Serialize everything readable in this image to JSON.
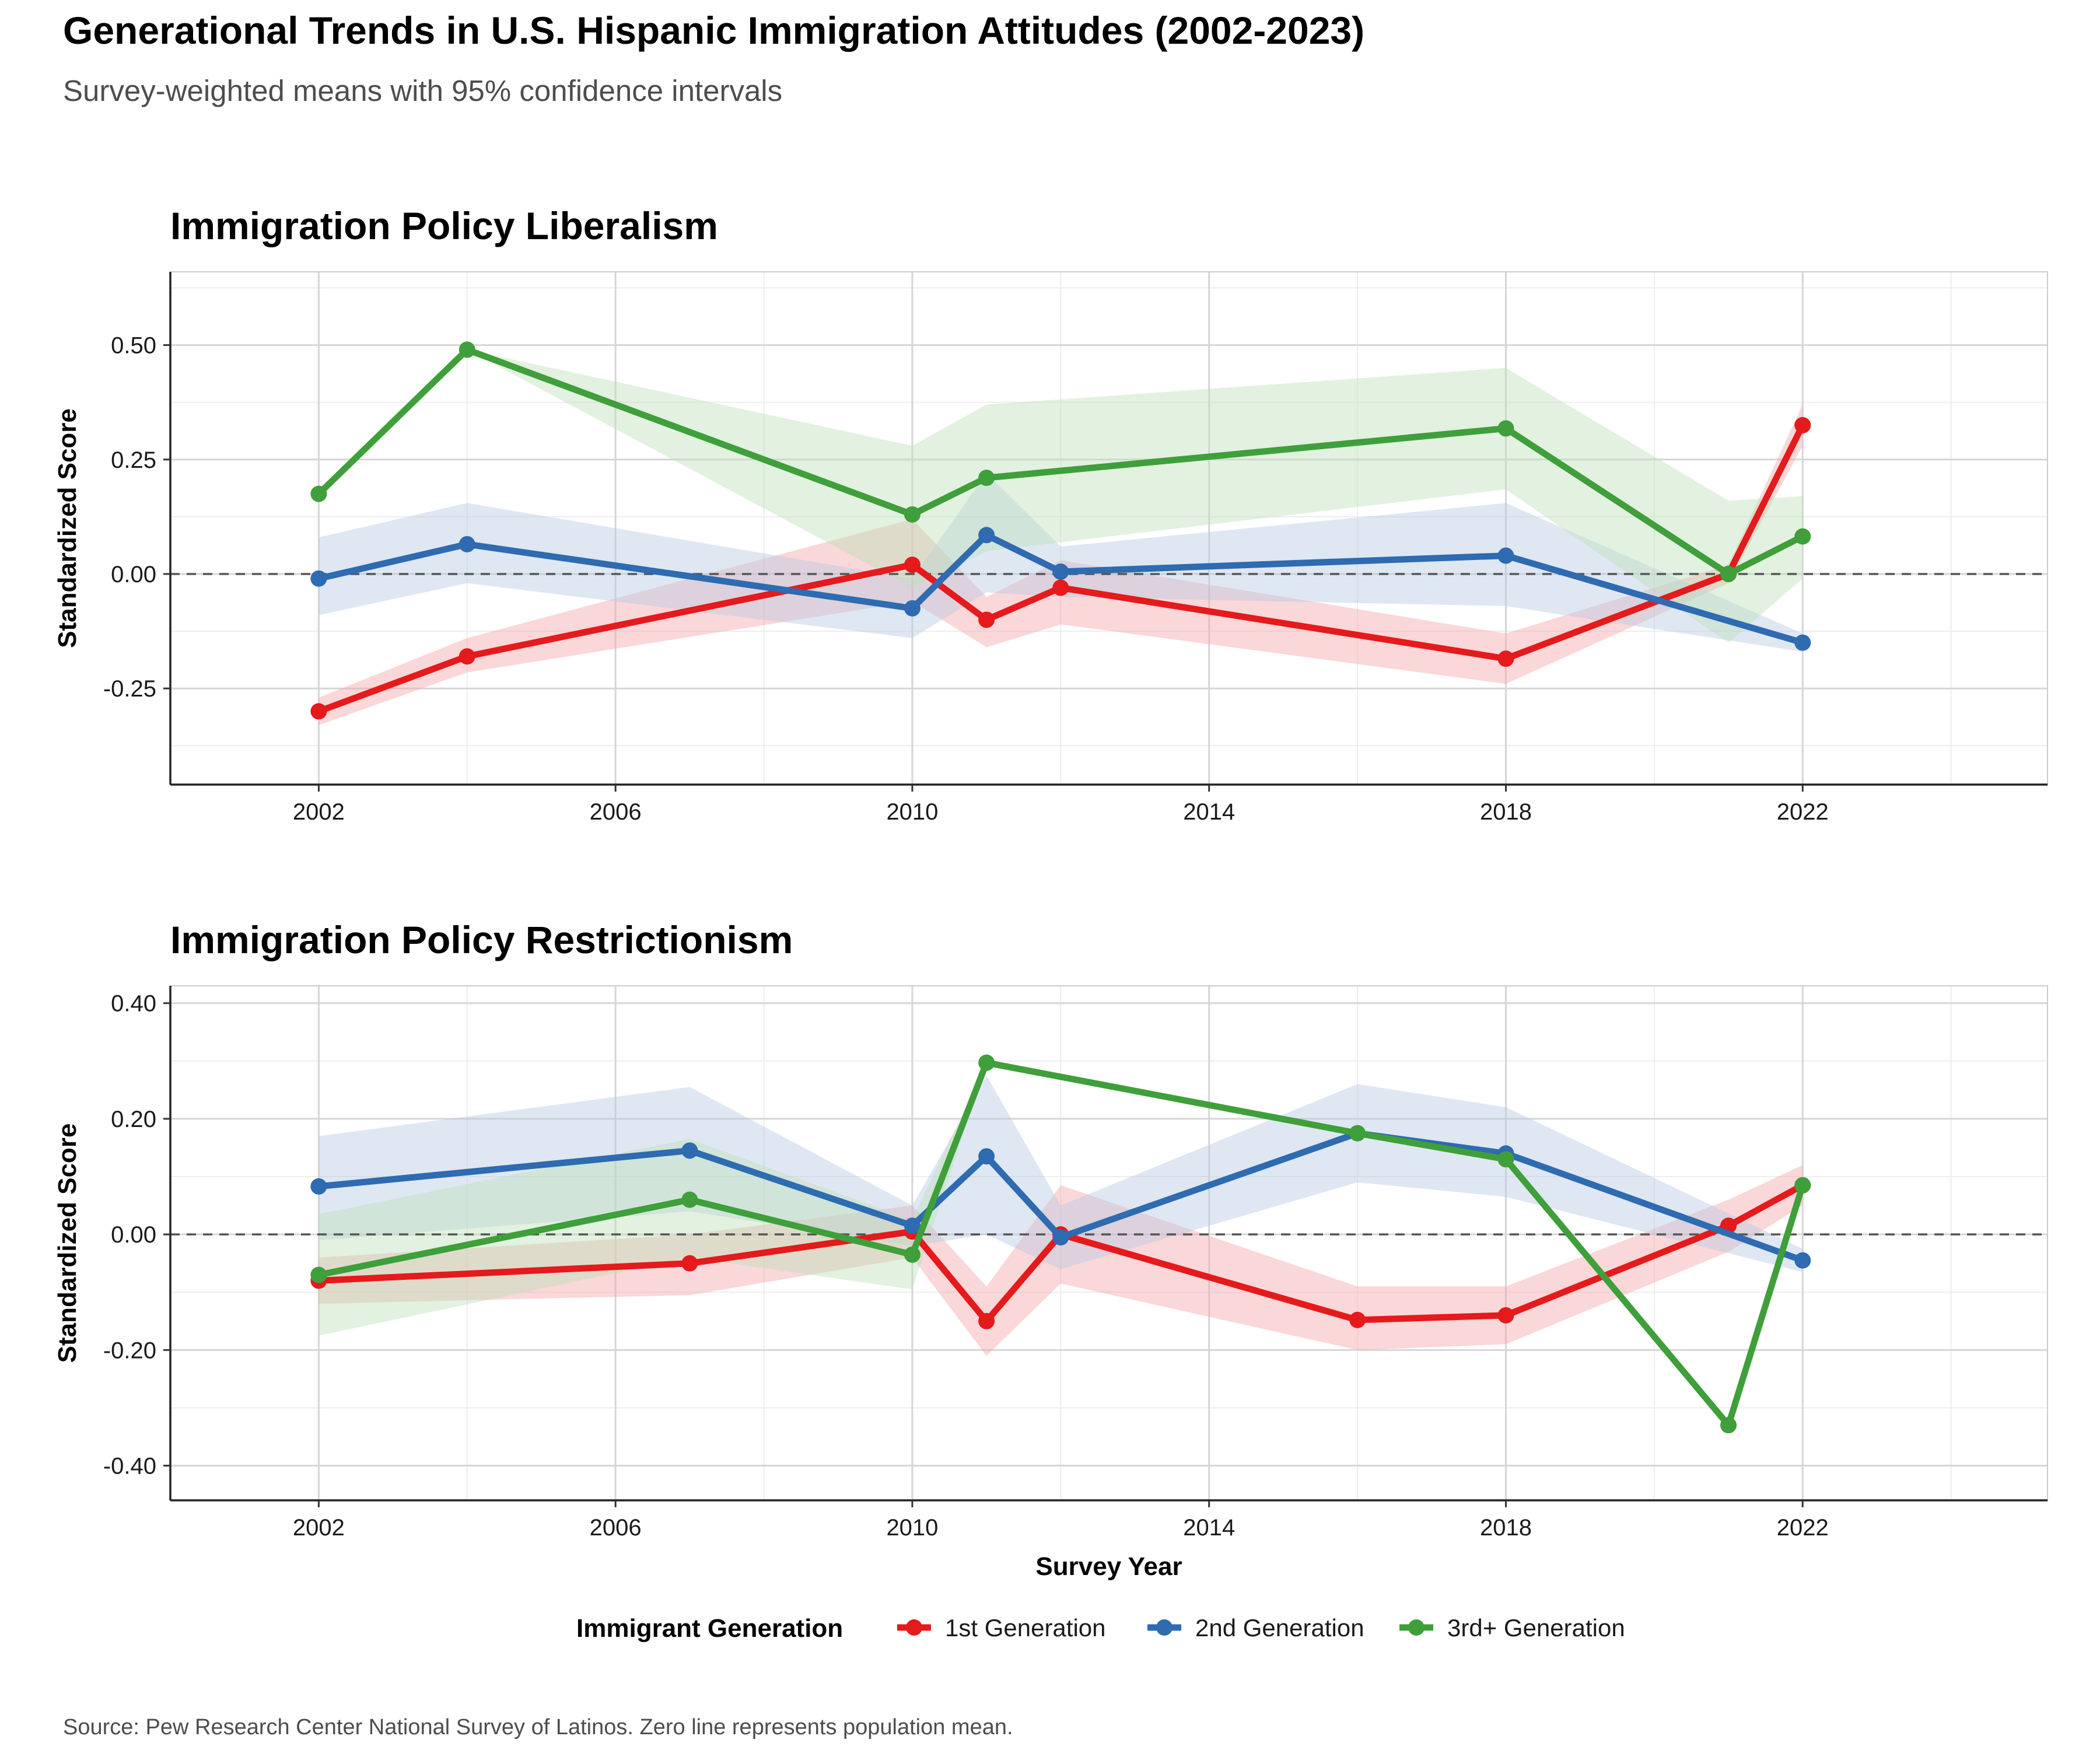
{
  "title": "Generational Trends in U.S. Hispanic Immigration Attitudes (2002-2023)",
  "subtitle": "Survey-weighted means with 95% confidence intervals",
  "caption": "Source: Pew Research Center National Survey of Latinos. Zero line represents population mean.",
  "colors": {
    "1st Generation": "#e41a1c",
    "2nd Generation": "#2e6bb0",
    "3rd+ Generation": "#3f9f3a",
    "ribbon_1st Generation": "#f4a6a8",
    "ribbon_2nd Generation": "#b9c9e2",
    "ribbon_3rd+ Generation": "#bfe0ba",
    "panel_bg": "#ffffff",
    "grid_major": "#d6d6d6",
    "grid_minor": "#ededed",
    "zero_line": "#555555"
  },
  "legend": {
    "title": "Immigrant Generation",
    "entries": [
      "1st Generation",
      "2nd Generation",
      "3rd+ Generation"
    ]
  },
  "chart_data": [
    {
      "type": "line",
      "title": "Immigration Policy Liberalism",
      "xlabel": "",
      "ylabel": "Standardized Score",
      "xlim": [
        2000,
        2025.3
      ],
      "ylim": [
        -0.46,
        0.66
      ],
      "x_ticks": [
        2002,
        2006,
        2010,
        2014,
        2018,
        2022
      ],
      "y_ticks": [
        -0.25,
        0.0,
        0.25,
        0.5
      ],
      "y_tick_labels": [
        "-0.25",
        "0.00",
        "0.25",
        "0.50"
      ],
      "reference_line": 0,
      "series": [
        {
          "name": "1st Generation",
          "x": [
            2002,
            2004,
            2010,
            2011,
            2012,
            2018,
            2021,
            2022
          ],
          "y": [
            -0.3,
            -0.18,
            0.02,
            -0.1,
            -0.03,
            -0.185,
            0.0,
            0.325
          ],
          "lower": [
            -0.33,
            -0.215,
            -0.06,
            -0.16,
            -0.11,
            -0.24,
            -0.02,
            0.28
          ],
          "upper": [
            -0.27,
            -0.14,
            0.12,
            -0.05,
            0.03,
            -0.13,
            0.02,
            0.37
          ]
        },
        {
          "name": "2nd Generation",
          "x": [
            2002,
            2004,
            2010,
            2011,
            2012,
            2018,
            2022
          ],
          "y": [
            -0.01,
            0.065,
            -0.075,
            0.085,
            0.005,
            0.04,
            -0.15
          ],
          "lower": [
            -0.09,
            -0.02,
            -0.14,
            -0.04,
            -0.05,
            -0.07,
            -0.17
          ],
          "upper": [
            0.08,
            0.155,
            -0.01,
            0.22,
            0.06,
            0.155,
            -0.13
          ]
        },
        {
          "name": "3rd+ Generation",
          "x": [
            2002,
            2004,
            2010,
            2011,
            2018,
            2021,
            2022
          ],
          "y": [
            0.175,
            0.49,
            0.13,
            0.21,
            0.318,
            0.0,
            0.082
          ],
          "lower": [
            0.175,
            0.49,
            -0.03,
            0.05,
            0.185,
            -0.15,
            -0.01
          ],
          "upper": [
            0.175,
            0.49,
            0.28,
            0.37,
            0.45,
            0.16,
            0.17
          ]
        }
      ]
    },
    {
      "type": "line",
      "title": "Immigration Policy Restrictionism",
      "xlabel": "Survey Year",
      "ylabel": "Standardized Score",
      "xlim": [
        2000,
        2025.3
      ],
      "ylim": [
        -0.46,
        0.43
      ],
      "x_ticks": [
        2002,
        2006,
        2010,
        2014,
        2018,
        2022
      ],
      "y_ticks": [
        -0.4,
        -0.2,
        0.0,
        0.2,
        0.4
      ],
      "y_tick_labels": [
        "-0.40",
        "-0.20",
        "0.00",
        "0.20",
        "0.40"
      ],
      "reference_line": 0,
      "series": [
        {
          "name": "1st Generation",
          "x": [
            2002,
            2007,
            2010,
            2011,
            2012,
            2016,
            2018,
            2021,
            2022
          ],
          "y": [
            -0.08,
            -0.05,
            0.005,
            -0.15,
            0.0,
            -0.148,
            -0.14,
            0.015,
            0.085
          ],
          "lower": [
            -0.12,
            -0.105,
            -0.04,
            -0.21,
            -0.085,
            -0.2,
            -0.19,
            -0.03,
            0.05
          ],
          "upper": [
            -0.04,
            0.0,
            0.05,
            -0.09,
            0.085,
            -0.09,
            -0.09,
            0.06,
            0.12
          ]
        },
        {
          "name": "2nd Generation",
          "x": [
            2002,
            2007,
            2010,
            2011,
            2012,
            2016,
            2018,
            2022
          ],
          "y": [
            0.083,
            0.145,
            0.015,
            0.135,
            -0.005,
            0.175,
            0.14,
            -0.045
          ],
          "lower": [
            -0.01,
            0.04,
            -0.02,
            0.0,
            -0.06,
            0.09,
            0.065,
            -0.065
          ],
          "upper": [
            0.17,
            0.255,
            0.05,
            0.275,
            0.05,
            0.26,
            0.22,
            -0.025
          ]
        },
        {
          "name": "3rd+ Generation",
          "x": [
            2002,
            2007,
            2010,
            2011,
            2016,
            2018,
            2021,
            2022
          ],
          "y": [
            -0.07,
            0.06,
            -0.035,
            0.297,
            0.175,
            0.13,
            -0.33,
            0.085
          ],
          "lower": [
            -0.175,
            -0.04,
            -0.095,
            0.297,
            0.175,
            0.13,
            -0.33,
            0.085
          ],
          "upper": [
            0.035,
            0.165,
            0.025,
            0.297,
            0.175,
            0.13,
            -0.33,
            0.085
          ]
        }
      ]
    }
  ]
}
